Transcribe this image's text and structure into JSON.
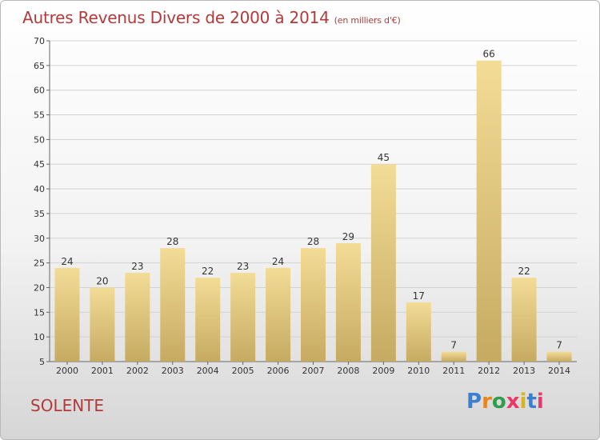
{
  "header": {
    "title": "Autres Revenus Divers de 2000 à 2014",
    "unit": "(en milliers d'€)"
  },
  "footer": {
    "city": "SOLENTE",
    "logo_text": "Proxiti"
  },
  "colors": {
    "title": "#b23a3a",
    "bar_light": "#f3dc96",
    "bar_dark": "#c6aa62",
    "grid": "#d2d2d2",
    "logo_letters": [
      "#3b7fd1",
      "#e8861e",
      "#2e9d4c",
      "#e83a6a",
      "#d7b51b",
      "#3b7fd1",
      "#e83a6a"
    ]
  },
  "chart_data": {
    "type": "bar",
    "title": "Autres Revenus Divers de 2000 à 2014",
    "subtitle": "(en milliers d'€)",
    "categories": [
      "2000",
      "2001",
      "2002",
      "2003",
      "2004",
      "2005",
      "2006",
      "2007",
      "2008",
      "2009",
      "2010",
      "2011",
      "2012",
      "2013",
      "2014"
    ],
    "values": [
      24,
      20,
      23,
      28,
      22,
      23,
      24,
      28,
      29,
      45,
      17,
      7,
      66,
      22,
      7
    ],
    "ylim": [
      5,
      70
    ],
    "yticks": [
      5,
      10,
      15,
      20,
      25,
      30,
      35,
      40,
      45,
      50,
      55,
      60,
      65,
      70
    ],
    "grid": true,
    "xlabel": "",
    "ylabel": ""
  }
}
